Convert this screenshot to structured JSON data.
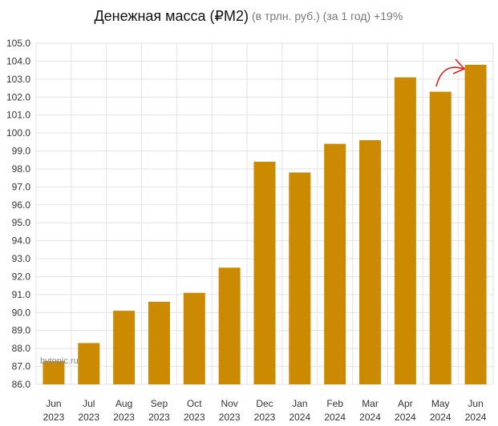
{
  "chart_data": {
    "type": "bar",
    "title": "Денежная масса (₽M2)",
    "subtitle": "(в трлн. руб.) (за 1 год) +19%",
    "categories": [
      [
        "Jun",
        "2023"
      ],
      [
        "Jul",
        "2023"
      ],
      [
        "Aug",
        "2023"
      ],
      [
        "Sep",
        "2023"
      ],
      [
        "Oct",
        "2023"
      ],
      [
        "Nov",
        "2023"
      ],
      [
        "Dec",
        "2023"
      ],
      [
        "Jan",
        "2024"
      ],
      [
        "Feb",
        "2024"
      ],
      [
        "Mar",
        "2024"
      ],
      [
        "Apr",
        "2024"
      ],
      [
        "May",
        "2024"
      ],
      [
        "Jun",
        "2024"
      ]
    ],
    "values": [
      87.3,
      88.3,
      90.1,
      90.6,
      91.1,
      92.5,
      98.4,
      97.8,
      99.4,
      99.6,
      103.1,
      102.3,
      103.8
    ],
    "ylim": [
      86.0,
      105.0
    ],
    "ytick_step": 1.0,
    "yticks": [
      "86.0",
      "87.0",
      "88.0",
      "89.0",
      "90.0",
      "91.0",
      "92.0",
      "93.0",
      "94.0",
      "95.0",
      "96.0",
      "97.0",
      "98.0",
      "99.0",
      "100.0",
      "101.0",
      "102.0",
      "103.0",
      "104.0",
      "105.0"
    ],
    "grid": true,
    "bar_color": "#cc8a00",
    "annotation_color": "#e02020",
    "watermark": "bytopic.ru"
  }
}
